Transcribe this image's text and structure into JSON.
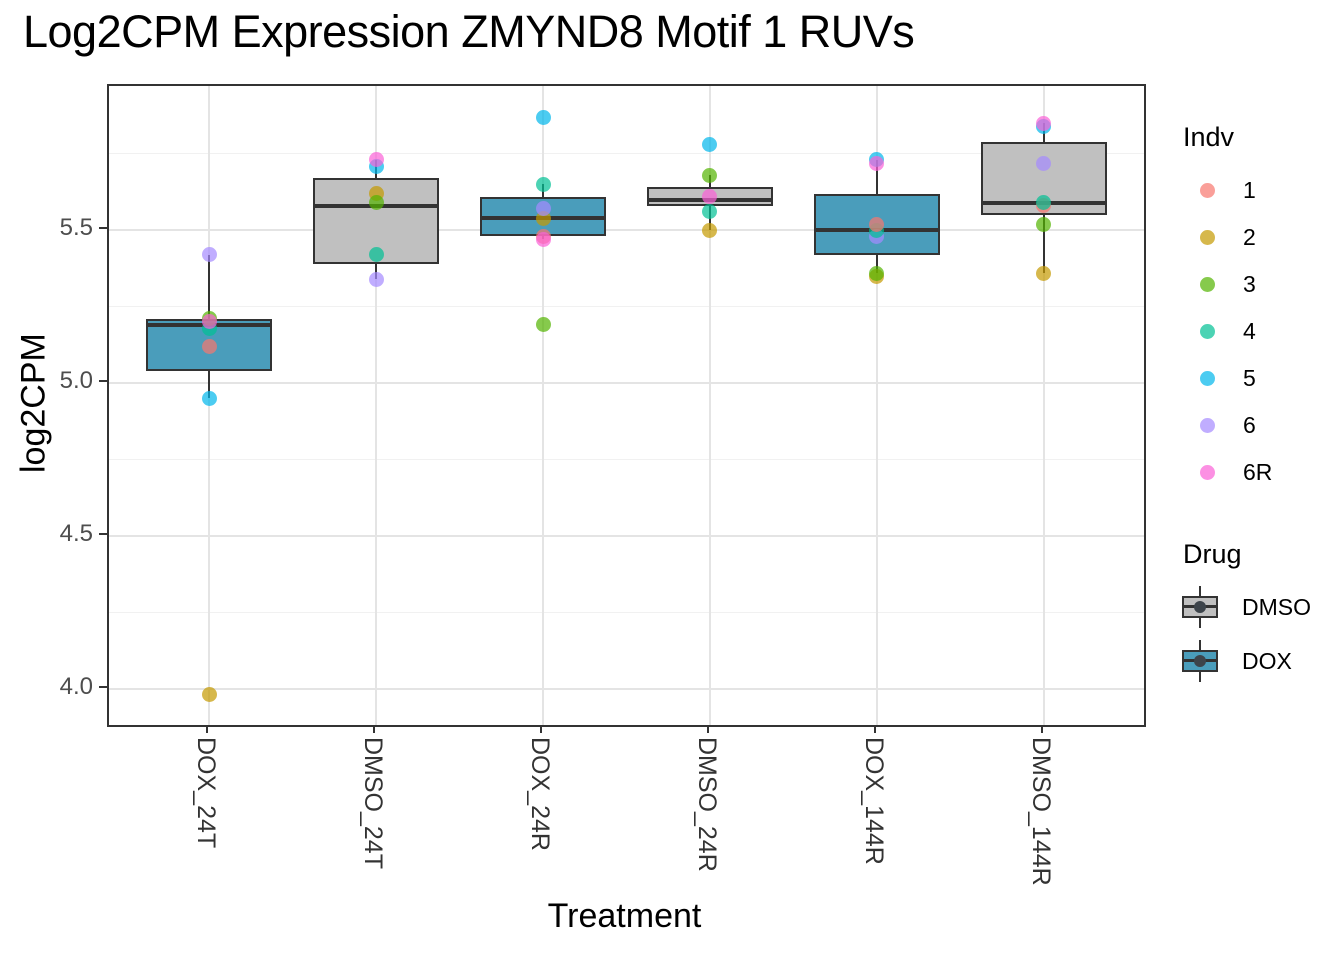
{
  "title": "Log2CPM Expression ZMYND8 Motif 1 RUVs",
  "chart_data": {
    "type": "boxplot",
    "title": "Log2CPM Expression ZMYND8 Motif 1 RUVs",
    "xlabel": "Treatment",
    "ylabel": "log2CPM",
    "ylim": [
      3.881,
      5.972
    ],
    "grid": true,
    "y_major_ticks": [
      {
        "label": "5.5",
        "value": 5.5
      },
      {
        "label": "5.0",
        "value": 5.0
      },
      {
        "label": "4.5",
        "value": 4.5
      },
      {
        "label": "4.0",
        "value": 4.0
      }
    ],
    "y_minor_ticks": [
      5.75,
      5.25,
      4.75,
      4.25
    ],
    "categories": [
      "DOX_24T",
      "DMSO_24T",
      "DOX_24R",
      "DMSO_24R",
      "DOX_144R",
      "DMSO_144R"
    ],
    "indv_colors": {
      "1": "#F8766D",
      "2": "#C49A00",
      "3": "#53B400",
      "4": "#00C094",
      "5": "#00B6EB",
      "6": "#A58AFF",
      "6R": "#FB61D7"
    },
    "drug_fills": {
      "DMSO": "#C0C0C0",
      "DOX": "#4A9DBB"
    },
    "box_border_color": "#333333",
    "groups": [
      {
        "label": "DOX_24T",
        "drug": "DOX",
        "box": {
          "lower": 4.95,
          "q1": 5.04,
          "median": 5.19,
          "q3": 5.21,
          "upper": 5.42
        },
        "points": [
          {
            "indv": "6",
            "value": 5.42
          },
          {
            "indv": "1",
            "value": 5.12
          },
          {
            "indv": "5",
            "value": 4.95
          },
          {
            "indv": "2",
            "value": 3.98
          },
          {
            "indv": "4",
            "value": 5.18
          },
          {
            "indv": "3",
            "value": 5.21
          },
          {
            "indv": "6R",
            "value": 5.2
          }
        ]
      },
      {
        "label": "DMSO_24T",
        "drug": "DMSO",
        "box": {
          "lower": 5.34,
          "q1": 5.39,
          "median": 5.58,
          "q3": 5.67,
          "upper": 5.73
        },
        "points": [
          {
            "indv": "4",
            "value": 5.42
          },
          {
            "indv": "6",
            "value": 5.34
          },
          {
            "indv": "2",
            "value": 5.62
          },
          {
            "indv": "3",
            "value": 5.59
          },
          {
            "indv": "5",
            "value": 5.71
          },
          {
            "indv": "6R",
            "value": 5.73
          }
        ]
      },
      {
        "label": "DOX_24R",
        "drug": "DOX",
        "box": {
          "lower": 5.47,
          "q1": 5.48,
          "median": 5.54,
          "q3": 5.61,
          "upper": 5.65
        },
        "points": [
          {
            "indv": "5",
            "value": 5.87
          },
          {
            "indv": "4",
            "value": 5.65
          },
          {
            "indv": "3",
            "value": 5.19
          },
          {
            "indv": "2",
            "value": 5.54
          },
          {
            "indv": "6",
            "value": 5.57
          },
          {
            "indv": "1",
            "value": 5.48
          },
          {
            "indv": "6R",
            "value": 5.47
          }
        ]
      },
      {
        "label": "DMSO_24R",
        "drug": "DMSO",
        "box": {
          "lower": 5.5,
          "q1": 5.58,
          "median": 5.6,
          "q3": 5.64,
          "upper": 5.68
        },
        "points": [
          {
            "indv": "5",
            "value": 5.78
          },
          {
            "indv": "3",
            "value": 5.68
          },
          {
            "indv": "4",
            "value": 5.56
          },
          {
            "indv": "2",
            "value": 5.5
          },
          {
            "indv": "6R",
            "value": 5.61
          }
        ]
      },
      {
        "label": "DOX_144R",
        "drug": "DOX",
        "box": {
          "lower": 5.36,
          "q1": 5.42,
          "median": 5.5,
          "q3": 5.62,
          "upper": 5.73
        },
        "points": [
          {
            "indv": "6",
            "value": 5.48
          },
          {
            "indv": "4",
            "value": 5.5
          },
          {
            "indv": "1",
            "value": 5.52
          },
          {
            "indv": "2",
            "value": 5.35
          },
          {
            "indv": "3",
            "value": 5.36
          },
          {
            "indv": "5",
            "value": 5.73
          },
          {
            "indv": "6R",
            "value": 5.72
          }
        ]
      },
      {
        "label": "DMSO_144R",
        "drug": "DMSO",
        "box": {
          "lower": 5.36,
          "q1": 5.55,
          "median": 5.59,
          "q3": 5.79,
          "upper": 5.85
        },
        "points": [
          {
            "indv": "1",
            "value": 5.58
          },
          {
            "indv": "4",
            "value": 5.59
          },
          {
            "indv": "3",
            "value": 5.52
          },
          {
            "indv": "2",
            "value": 5.36
          },
          {
            "indv": "6",
            "value": 5.72
          },
          {
            "indv": "5",
            "value": 5.84
          },
          {
            "indv": "6R",
            "value": 5.85
          }
        ]
      }
    ]
  },
  "legend_indv": {
    "title": "Indv",
    "items": [
      {
        "label": "1",
        "color": "#F8766D"
      },
      {
        "label": "2",
        "color": "#C49A00"
      },
      {
        "label": "3",
        "color": "#53B400"
      },
      {
        "label": "4",
        "color": "#00C094"
      },
      {
        "label": "5",
        "color": "#00B6EB"
      },
      {
        "label": "6",
        "color": "#A58AFF"
      },
      {
        "label": "6R",
        "color": "#FB61D7"
      }
    ]
  },
  "legend_drug": {
    "title": "Drug",
    "items": [
      {
        "label": "DMSO",
        "fill": "#C0C0C0"
      },
      {
        "label": "DOX",
        "fill": "#4A9DBB"
      }
    ]
  }
}
